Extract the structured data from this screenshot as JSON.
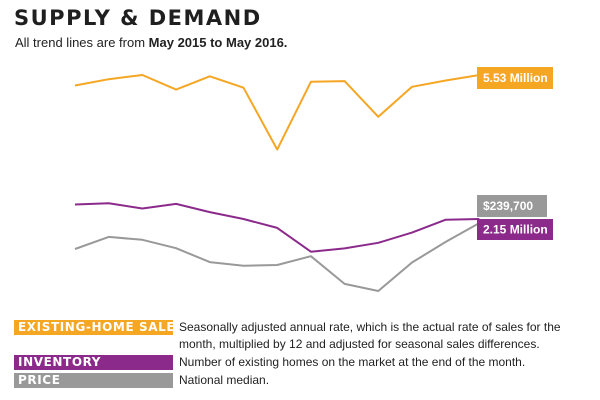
{
  "header": {
    "title": "SUPPLY & DEMAND",
    "subtitle_prefix": "All trend lines are from ",
    "subtitle_range": "May 2015 to May 2016."
  },
  "colors": {
    "sales": "#f5a623",
    "inventory": "#8b2a8b",
    "price": "#999999"
  },
  "legend": [
    {
      "label": "EXISTING-HOME SALES",
      "description": "Seasonally adjusted annual rate, which is the actual rate of sales for the month, multiplied by 12 and adjusted for seasonal sales differences.",
      "color": "#f5a623"
    },
    {
      "label": "INVENTORY",
      "description": "Number of existing homes on the market at the end of the month.",
      "color": "#8b2a8b"
    },
    {
      "label": "PRICE",
      "description": "National median.",
      "color": "#999999"
    }
  ],
  "chart_data": {
    "type": "line",
    "title": "SUPPLY & DEMAND",
    "subtitle": "All trend lines are from May 2015 to May 2016.",
    "xlabel": "",
    "ylabel": "",
    "grid": false,
    "legend_placement": "bottom",
    "point_count": 13,
    "series": [
      {
        "name": "EXISTING-HOME SALES",
        "relative_level": [
          0.45,
          0.78,
          1.0,
          0.23,
          0.93,
          0.33,
          -2.92,
          0.64,
          0.68,
          -1.2,
          0.38,
          0.71,
          1.0
        ],
        "end_label": "5.53 Million",
        "color": "#f5a623"
      },
      {
        "name": "INVENTORY",
        "relative_level": [
          0.56,
          0.6,
          0.44,
          0.58,
          0.33,
          0.12,
          -0.15,
          -0.87,
          -0.77,
          -0.6,
          -0.29,
          0.1,
          0.12
        ],
        "end_label": "2.15 Million",
        "color": "#8b2a8b"
      },
      {
        "name": "PRICE",
        "relative_level": [
          0.38,
          0.67,
          0.6,
          0.4,
          0.07,
          -0.02,
          0.0,
          0.21,
          -0.45,
          -0.62,
          0.06,
          0.55,
          1.0
        ],
        "end_label": "$239,700",
        "color": "#999999"
      }
    ]
  }
}
